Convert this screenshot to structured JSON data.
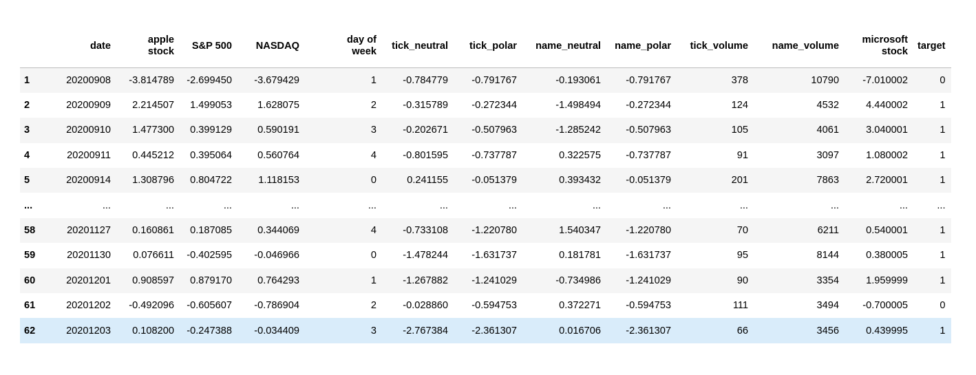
{
  "table": {
    "columns": [
      {
        "key": "idx",
        "label": ""
      },
      {
        "key": "date",
        "label": "date"
      },
      {
        "key": "apple",
        "label": "apple stock",
        "lines": [
          "apple",
          "stock"
        ]
      },
      {
        "key": "sp500",
        "label": "S&P 500"
      },
      {
        "key": "nasdaq",
        "label": "NASDAQ"
      },
      {
        "key": "dow",
        "label": "day of week",
        "lines": [
          "day of",
          "week"
        ]
      },
      {
        "key": "tick_neutral",
        "label": "tick_neutral"
      },
      {
        "key": "tick_polar",
        "label": "tick_polar"
      },
      {
        "key": "name_neutral",
        "label": "name_neutral"
      },
      {
        "key": "name_polar",
        "label": "name_polar"
      },
      {
        "key": "tick_volume",
        "label": "tick_volume"
      },
      {
        "key": "name_volume",
        "label": "name_volume"
      },
      {
        "key": "msft",
        "label": "microsoft stock",
        "lines": [
          "microsoft",
          "stock"
        ]
      },
      {
        "key": "target",
        "label": "target"
      }
    ],
    "rows": [
      {
        "idx": "1",
        "cells": [
          "20200908",
          "-3.814789",
          "-2.699450",
          "-3.679429",
          "1",
          "-0.784779",
          "-0.791767",
          "-0.193061",
          "-0.791767",
          "378",
          "10790",
          "-7.010002",
          "0"
        ]
      },
      {
        "idx": "2",
        "cells": [
          "20200909",
          "2.214507",
          "1.499053",
          "1.628075",
          "2",
          "-0.315789",
          "-0.272344",
          "-1.498494",
          "-0.272344",
          "124",
          "4532",
          "4.440002",
          "1"
        ]
      },
      {
        "idx": "3",
        "cells": [
          "20200910",
          "1.477300",
          "0.399129",
          "0.590191",
          "3",
          "-0.202671",
          "-0.507963",
          "-1.285242",
          "-0.507963",
          "105",
          "4061",
          "3.040001",
          "1"
        ]
      },
      {
        "idx": "4",
        "cells": [
          "20200911",
          "0.445212",
          "0.395064",
          "0.560764",
          "4",
          "-0.801595",
          "-0.737787",
          "0.322575",
          "-0.737787",
          "91",
          "3097",
          "1.080002",
          "1"
        ]
      },
      {
        "idx": "5",
        "cells": [
          "20200914",
          "1.308796",
          "0.804722",
          "1.118153",
          "0",
          "0.241155",
          "-0.051379",
          "0.393432",
          "-0.051379",
          "201",
          "7863",
          "2.720001",
          "1"
        ]
      },
      {
        "idx": "...",
        "cells": [
          "...",
          "...",
          "...",
          "...",
          "...",
          "...",
          "...",
          "...",
          "...",
          "...",
          "...",
          "...",
          "..."
        ]
      },
      {
        "idx": "58",
        "cells": [
          "20201127",
          "0.160861",
          "0.187085",
          "0.344069",
          "4",
          "-0.733108",
          "-1.220780",
          "1.540347",
          "-1.220780",
          "70",
          "6211",
          "0.540001",
          "1"
        ]
      },
      {
        "idx": "59",
        "cells": [
          "20201130",
          "0.076611",
          "-0.402595",
          "-0.046966",
          "0",
          "-1.478244",
          "-1.631737",
          "0.181781",
          "-1.631737",
          "95",
          "8144",
          "0.380005",
          "1"
        ]
      },
      {
        "idx": "60",
        "cells": [
          "20201201",
          "0.908597",
          "0.879170",
          "0.764293",
          "1",
          "-1.267882",
          "-1.241029",
          "-0.734986",
          "-1.241029",
          "90",
          "3354",
          "1.959999",
          "1"
        ]
      },
      {
        "idx": "61",
        "cells": [
          "20201202",
          "-0.492096",
          "-0.605607",
          "-0.786904",
          "2",
          "-0.028860",
          "-0.594753",
          "0.372271",
          "-0.594753",
          "111",
          "3494",
          "-0.700005",
          "0"
        ]
      },
      {
        "idx": "62",
        "cells": [
          "20201203",
          "0.108200",
          "-0.247388",
          "-0.034409",
          "3",
          "-2.767384",
          "-2.361307",
          "0.016706",
          "-2.361307",
          "66",
          "3456",
          "0.439995",
          "1"
        ],
        "selected": true
      }
    ]
  },
  "colors": {
    "stripe": "#f5f5f5",
    "selected_row": "#d9ecfa",
    "header_rule": "#bdbdbd"
  }
}
